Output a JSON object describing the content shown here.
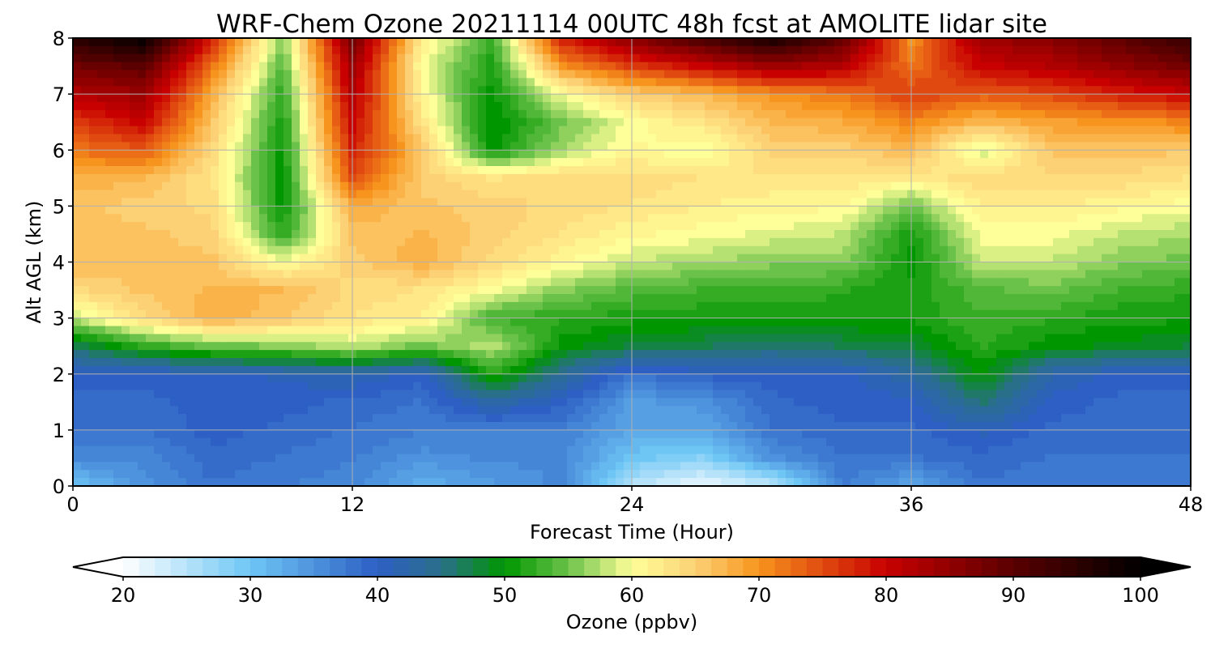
{
  "chart_data": {
    "type": "heatmap",
    "title": "WRF-Chem Ozone  20211114 00UTC 48h fcst at AMOLITE lidar site",
    "xlabel": "Forecast Time (Hour)",
    "ylabel": "Alt AGL (km)",
    "xlim": [
      0,
      48
    ],
    "ylim": [
      0,
      8
    ],
    "x_ticks": [
      0,
      12,
      24,
      36,
      48
    ],
    "y_ticks": [
      0,
      1,
      2,
      3,
      4,
      5,
      6,
      7,
      8
    ],
    "grid": true,
    "colorbar": {
      "label": "Ozone  (ppbv)",
      "min": 20,
      "max": 100,
      "ticks": [
        20,
        30,
        40,
        50,
        60,
        70,
        80,
        90,
        100
      ],
      "extend": "both",
      "placement": "bottom",
      "color_stops": [
        {
          "value": 20,
          "color": "#ffffff"
        },
        {
          "value": 30,
          "color": "#6ec6f5"
        },
        {
          "value": 40,
          "color": "#2d5fc4"
        },
        {
          "value": 45,
          "color": "#2a6f8a"
        },
        {
          "value": 50,
          "color": "#009600"
        },
        {
          "value": 55,
          "color": "#6bc24a"
        },
        {
          "value": 60,
          "color": "#ffff99"
        },
        {
          "value": 65,
          "color": "#fcd175"
        },
        {
          "value": 70,
          "color": "#f7941d"
        },
        {
          "value": 75,
          "color": "#e04a10"
        },
        {
          "value": 80,
          "color": "#c80000"
        },
        {
          "value": 90,
          "color": "#5a0000"
        },
        {
          "value": 100,
          "color": "#000000"
        }
      ],
      "under_color": "#ffffff",
      "over_color": "#000000"
    },
    "x": [
      0,
      3,
      6,
      9,
      12,
      15,
      18,
      21,
      24,
      27,
      30,
      33,
      36,
      39,
      42,
      45,
      48
    ],
    "y": [
      0,
      0.5,
      1,
      1.5,
      2,
      2.5,
      3,
      3.5,
      4,
      4.5,
      5,
      5.5,
      6,
      6.5,
      7,
      7.5,
      8
    ],
    "z": [
      [
        30,
        35,
        38,
        37,
        36,
        32,
        34,
        36,
        25,
        21,
        24,
        37,
        33,
        38,
        37,
        38,
        38
      ],
      [
        36,
        36,
        39,
        38,
        37,
        35,
        36,
        36,
        30,
        28,
        35,
        38,
        38,
        39,
        38,
        38,
        38
      ],
      [
        38,
        38,
        40,
        39,
        38,
        37,
        37,
        37,
        33,
        33,
        38,
        39,
        39,
        41,
        39,
        39,
        39
      ],
      [
        39,
        39,
        40,
        40,
        39,
        38,
        43,
        40,
        34,
        35,
        39,
        40,
        40,
        46,
        40,
        39,
        39
      ],
      [
        40,
        40,
        40,
        41,
        42,
        40,
        52,
        44,
        38,
        40,
        40,
        40,
        43,
        50,
        42,
        40,
        40
      ],
      [
        47,
        52,
        55,
        56,
        58,
        55,
        58,
        50,
        48,
        47,
        46,
        47,
        48,
        52,
        50,
        49,
        48
      ],
      [
        58,
        64,
        68,
        66,
        63,
        62,
        53,
        52,
        51,
        51,
        51,
        51,
        51,
        53,
        52,
        51,
        51
      ],
      [
        64,
        66,
        67,
        67,
        64,
        63,
        60,
        56,
        54,
        53,
        53,
        52,
        51,
        54,
        55,
        53,
        52
      ],
      [
        67,
        66,
        66,
        60,
        65,
        68,
        64,
        61,
        58,
        57,
        56,
        56,
        50,
        58,
        58,
        56,
        55
      ],
      [
        66,
        66,
        65,
        52,
        66,
        67,
        65,
        63,
        61,
        60,
        59,
        58,
        51,
        60,
        60,
        58,
        57
      ],
      [
        66,
        65,
        64,
        50,
        68,
        66,
        65,
        64,
        63,
        62,
        61,
        61,
        55,
        62,
        62,
        61,
        60
      ],
      [
        68,
        67,
        63,
        50,
        75,
        65,
        63,
        64,
        64,
        63,
        63,
        63,
        62,
        64,
        64,
        64,
        63
      ],
      [
        72,
        74,
        64,
        50,
        78,
        66,
        50,
        57,
        61,
        59,
        65,
        65,
        67,
        58,
        66,
        66,
        66
      ],
      [
        76,
        80,
        66,
        51,
        80,
        63,
        49,
        55,
        60,
        63,
        67,
        68,
        71,
        67,
        69,
        70,
        71
      ],
      [
        82,
        84,
        68,
        52,
        82,
        61,
        50,
        60,
        65,
        67,
        70,
        72,
        76,
        74,
        75,
        78,
        80
      ],
      [
        88,
        90,
        72,
        54,
        84,
        60,
        51,
        70,
        76,
        80,
        84,
        82,
        72,
        80,
        82,
        85,
        88
      ],
      [
        96,
        100,
        78,
        56,
        88,
        62,
        53,
        78,
        86,
        92,
        98,
        90,
        70,
        84,
        86,
        90,
        94
      ]
    ]
  }
}
